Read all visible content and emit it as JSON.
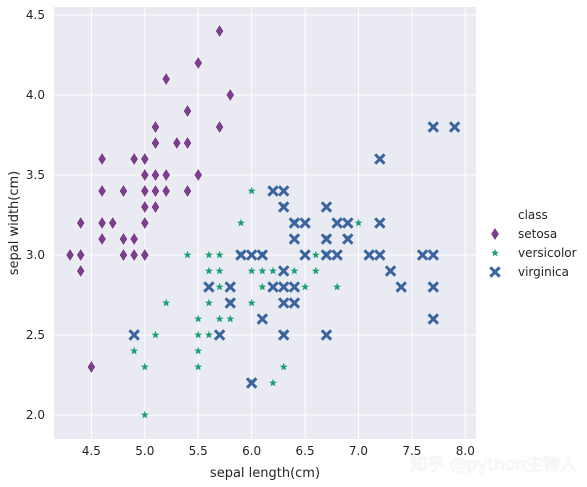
{
  "colors": {
    "background": "#eaeaf2",
    "grid": "#ffffff",
    "setosa": "#7b3f8c",
    "versicolor": "#1a9e75",
    "virginica": "#3a64a0"
  },
  "watermark": "知乎 @python生物人",
  "chart_data": {
    "type": "scatter",
    "xlabel": "sepal length(cm)",
    "ylabel": "sepal width(cm)",
    "xlim": [
      4.15,
      8.1
    ],
    "ylim": [
      1.85,
      4.55
    ],
    "xticks": [
      4.5,
      5.0,
      5.5,
      6.0,
      6.5,
      7.0,
      7.5,
      8.0
    ],
    "xtick_labels": [
      "4.5",
      "5.0",
      "5.5",
      "6.0",
      "6.5",
      "7.0",
      "7.5",
      "8.0"
    ],
    "yticks": [
      2.0,
      2.5,
      3.0,
      3.5,
      4.0,
      4.5
    ],
    "ytick_labels": [
      "2.0",
      "2.5",
      "3.0",
      "3.5",
      "4.0",
      "4.5"
    ],
    "grid": true,
    "legend": {
      "title": "class",
      "placement": "right",
      "entries": [
        {
          "label": "setosa",
          "marker": "diamond"
        },
        {
          "label": "versicolor",
          "marker": "star"
        },
        {
          "label": "virginica",
          "marker": "x"
        }
      ]
    },
    "series": [
      {
        "name": "setosa",
        "marker": "diamond",
        "points": [
          [
            4.3,
            3.0
          ],
          [
            4.4,
            2.9
          ],
          [
            4.4,
            3.0
          ],
          [
            4.4,
            3.2
          ],
          [
            4.5,
            2.3
          ],
          [
            4.6,
            3.1
          ],
          [
            4.6,
            3.2
          ],
          [
            4.6,
            3.4
          ],
          [
            4.6,
            3.6
          ],
          [
            4.7,
            3.2
          ],
          [
            4.8,
            3.0
          ],
          [
            4.8,
            3.1
          ],
          [
            4.8,
            3.4
          ],
          [
            4.9,
            3.0
          ],
          [
            4.9,
            3.1
          ],
          [
            4.9,
            3.6
          ],
          [
            5.0,
            3.0
          ],
          [
            5.0,
            3.2
          ],
          [
            5.0,
            3.3
          ],
          [
            5.0,
            3.4
          ],
          [
            5.0,
            3.5
          ],
          [
            5.0,
            3.6
          ],
          [
            5.1,
            3.3
          ],
          [
            5.1,
            3.4
          ],
          [
            5.1,
            3.5
          ],
          [
            5.1,
            3.7
          ],
          [
            5.1,
            3.8
          ],
          [
            5.2,
            3.4
          ],
          [
            5.2,
            3.5
          ],
          [
            5.2,
            4.1
          ],
          [
            5.3,
            3.7
          ],
          [
            5.4,
            3.4
          ],
          [
            5.4,
            3.7
          ],
          [
            5.4,
            3.9
          ],
          [
            5.5,
            3.5
          ],
          [
            5.5,
            4.2
          ],
          [
            5.7,
            3.8
          ],
          [
            5.7,
            4.4
          ],
          [
            5.8,
            4.0
          ]
        ]
      },
      {
        "name": "versicolor",
        "marker": "star",
        "points": [
          [
            4.9,
            2.4
          ],
          [
            5.0,
            2.0
          ],
          [
            5.0,
            2.3
          ],
          [
            5.1,
            2.5
          ],
          [
            5.2,
            2.7
          ],
          [
            5.4,
            3.0
          ],
          [
            5.5,
            2.3
          ],
          [
            5.5,
            2.4
          ],
          [
            5.5,
            2.5
          ],
          [
            5.5,
            2.6
          ],
          [
            5.6,
            2.5
          ],
          [
            5.6,
            2.7
          ],
          [
            5.6,
            2.9
          ],
          [
            5.6,
            3.0
          ],
          [
            5.7,
            2.6
          ],
          [
            5.7,
            2.8
          ],
          [
            5.7,
            2.9
          ],
          [
            5.7,
            3.0
          ],
          [
            5.8,
            2.6
          ],
          [
            5.8,
            2.7
          ],
          [
            5.9,
            3.0
          ],
          [
            5.9,
            3.2
          ],
          [
            6.0,
            2.2
          ],
          [
            6.0,
            2.7
          ],
          [
            6.0,
            2.9
          ],
          [
            6.0,
            3.4
          ],
          [
            6.1,
            2.8
          ],
          [
            6.1,
            2.9
          ],
          [
            6.1,
            3.0
          ],
          [
            6.2,
            2.2
          ],
          [
            6.2,
            2.9
          ],
          [
            6.3,
            2.3
          ],
          [
            6.3,
            2.5
          ],
          [
            6.3,
            3.3
          ],
          [
            6.4,
            2.9
          ],
          [
            6.4,
            3.2
          ],
          [
            6.5,
            2.8
          ],
          [
            6.6,
            2.9
          ],
          [
            6.6,
            3.0
          ],
          [
            6.7,
            3.0
          ],
          [
            6.7,
            3.1
          ],
          [
            6.8,
            2.8
          ],
          [
            6.9,
            3.1
          ],
          [
            7.0,
            3.2
          ]
        ]
      },
      {
        "name": "virginica",
        "marker": "x",
        "points": [
          [
            4.9,
            2.5
          ],
          [
            5.6,
            2.8
          ],
          [
            5.7,
            2.5
          ],
          [
            5.8,
            2.7
          ],
          [
            5.8,
            2.8
          ],
          [
            5.9,
            3.0
          ],
          [
            6.0,
            2.2
          ],
          [
            6.0,
            3.0
          ],
          [
            6.1,
            2.6
          ],
          [
            6.1,
            3.0
          ],
          [
            6.2,
            2.8
          ],
          [
            6.2,
            3.4
          ],
          [
            6.3,
            2.5
          ],
          [
            6.3,
            2.7
          ],
          [
            6.3,
            2.8
          ],
          [
            6.3,
            2.9
          ],
          [
            6.3,
            3.3
          ],
          [
            6.3,
            3.4
          ],
          [
            6.4,
            2.7
          ],
          [
            6.4,
            2.8
          ],
          [
            6.4,
            3.1
          ],
          [
            6.4,
            3.2
          ],
          [
            6.5,
            3.0
          ],
          [
            6.5,
            3.2
          ],
          [
            6.7,
            2.5
          ],
          [
            6.7,
            3.0
          ],
          [
            6.7,
            3.1
          ],
          [
            6.7,
            3.3
          ],
          [
            6.8,
            3.0
          ],
          [
            6.8,
            3.2
          ],
          [
            6.9,
            3.1
          ],
          [
            6.9,
            3.2
          ],
          [
            7.1,
            3.0
          ],
          [
            7.2,
            3.0
          ],
          [
            7.2,
            3.2
          ],
          [
            7.2,
            3.6
          ],
          [
            7.3,
            2.9
          ],
          [
            7.4,
            2.8
          ],
          [
            7.6,
            3.0
          ],
          [
            7.7,
            2.6
          ],
          [
            7.7,
            2.8
          ],
          [
            7.7,
            3.0
          ],
          [
            7.7,
            3.8
          ],
          [
            7.9,
            3.8
          ]
        ]
      }
    ]
  }
}
